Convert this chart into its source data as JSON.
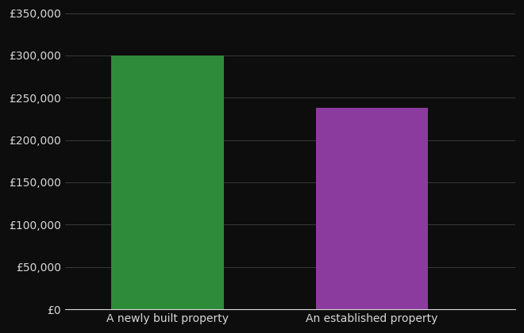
{
  "categories": [
    "A newly built property",
    "An established property"
  ],
  "values": [
    300000,
    238000
  ],
  "bar_colors": [
    "#2e8b3a",
    "#8b3a9e"
  ],
  "background_color": "#0d0d0d",
  "text_color": "#d8d8d8",
  "grid_color": "#3a3a3a",
  "ylim": [
    0,
    350000
  ],
  "yticks": [
    0,
    50000,
    100000,
    150000,
    200000,
    250000,
    300000,
    350000
  ],
  "bar_width": 0.55,
  "x_positions": [
    1,
    2
  ],
  "xlim": [
    0.5,
    2.7
  ],
  "tick_fontsize": 10,
  "label_fontsize": 10
}
